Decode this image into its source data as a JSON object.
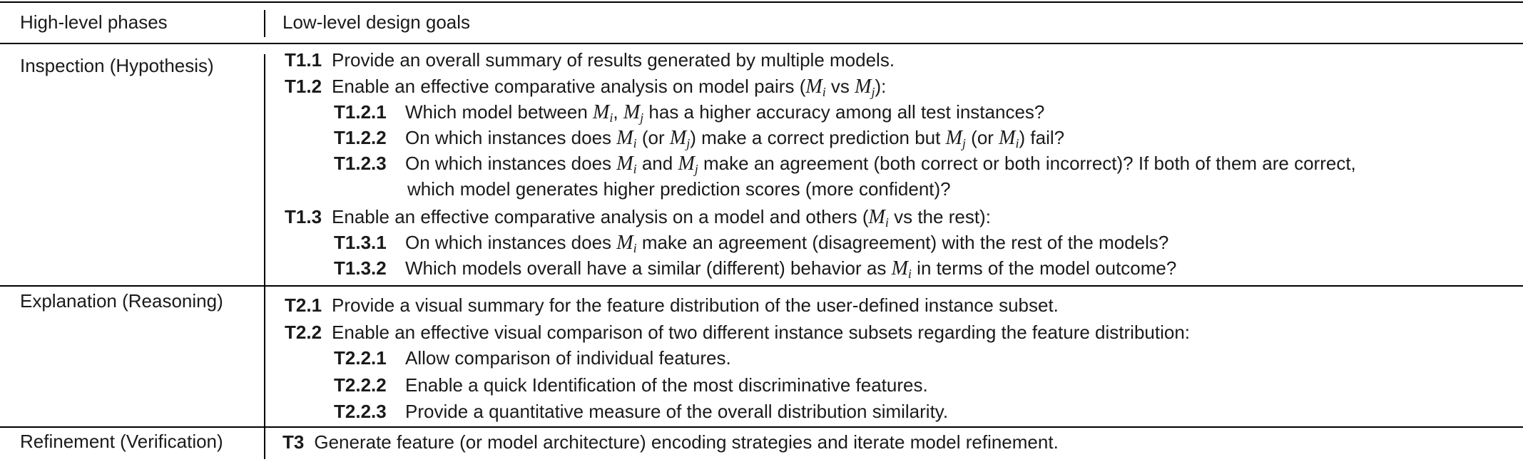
{
  "header": {
    "col1": "High-level phases",
    "col2": "Low-level design goals"
  },
  "phases": {
    "inspection": "Inspection (Hypothesis)",
    "explanation": "Explanation (Reasoning)",
    "refinement": "Refinement (Verification)"
  },
  "goals": {
    "t1_1": {
      "id": "T1.1",
      "text": "Provide an overall summary of results generated by multiple models."
    },
    "t1_2": {
      "id": "T1.2",
      "text_a": "Enable an effective comparative analysis on model pairs (",
      "text_b": " vs ",
      "text_c": "):"
    },
    "t1_2_1": {
      "id": "T1.2.1",
      "text_a": "Which model between ",
      "text_b": ", ",
      "text_c": " has a higher accuracy among all test instances?"
    },
    "t1_2_2": {
      "id": "T1.2.2",
      "text_a": "On which instances does ",
      "text_b": " (or ",
      "text_c": ") make a correct prediction but ",
      "text_d": " (or ",
      "text_e": ") fail?"
    },
    "t1_2_3": {
      "id": "T1.2.3",
      "text_a": "On which instances does ",
      "text_b": " and ",
      "text_c": " make an agreement (both correct or both incorrect)? If both of them are correct,",
      "cont": "which model generates higher prediction scores (more confident)?"
    },
    "t1_3": {
      "id": "T1.3",
      "text_a": "Enable an effective comparative analysis on a model and others (",
      "text_b": " vs the rest):"
    },
    "t1_3_1": {
      "id": "T1.3.1",
      "text_a": "On which instances does ",
      "text_b": " make an agreement (disagreement) with the rest of the models?"
    },
    "t1_3_2": {
      "id": "T1.3.2",
      "text_a": "Which models overall have a similar (different) behavior as ",
      "text_b": " in terms of the model outcome?"
    },
    "t2_1": {
      "id": "T2.1",
      "text": "Provide a visual summary for the feature distribution of the user-defined instance subset."
    },
    "t2_2": {
      "id": "T2.2",
      "text": "Enable an effective visual comparison of two different instance subsets regarding the feature distribution:"
    },
    "t2_2_1": {
      "id": "T2.2.1",
      "text": "Allow comparison of individual features."
    },
    "t2_2_2": {
      "id": "T2.2.2",
      "text": "Enable a quick Identification of the most discriminative features."
    },
    "t2_2_3": {
      "id": "T2.2.3",
      "text": "Provide a quantitative measure of the overall distribution similarity."
    },
    "t3": {
      "id": "T3",
      "text": "Generate feature (or model architecture) encoding strategies and iterate model refinement."
    }
  },
  "math": {
    "M": "M",
    "i": "i",
    "j": "j"
  }
}
